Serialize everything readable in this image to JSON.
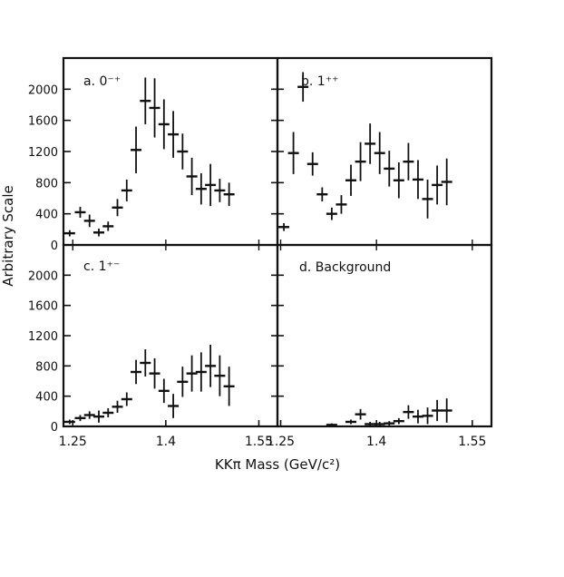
{
  "chart_data": {
    "type": "scatter",
    "style": "error-bar points, black on white, 2x2 panel grid with shared axes",
    "ylabel": "Arbitrary Scale",
    "xlabel": "KKπ Mass (GeV/c²)",
    "ylim": [
      0,
      2400
    ],
    "y_ticks": [
      "0",
      "400",
      "800",
      "1200",
      "1600",
      "2000"
    ],
    "x_ticks": [
      "1.25",
      "1.4",
      "1.55"
    ],
    "panels": [
      {
        "label": "a. 0⁻⁺",
        "xlim": [
          1.235,
          1.58
        ],
        "points": [
          {
            "x": 1.245,
            "y": 150,
            "err": 40
          },
          {
            "x": 1.262,
            "y": 420,
            "err": 70
          },
          {
            "x": 1.277,
            "y": 310,
            "err": 80
          },
          {
            "x": 1.292,
            "y": 160,
            "err": 50
          },
          {
            "x": 1.307,
            "y": 240,
            "err": 60
          },
          {
            "x": 1.322,
            "y": 480,
            "err": 110
          },
          {
            "x": 1.337,
            "y": 700,
            "err": 140
          },
          {
            "x": 1.352,
            "y": 1220,
            "err": 300
          },
          {
            "x": 1.367,
            "y": 1850,
            "err": 300
          },
          {
            "x": 1.382,
            "y": 1760,
            "err": 380
          },
          {
            "x": 1.397,
            "y": 1550,
            "err": 320
          },
          {
            "x": 1.412,
            "y": 1420,
            "err": 300
          },
          {
            "x": 1.427,
            "y": 1200,
            "err": 230
          },
          {
            "x": 1.442,
            "y": 880,
            "err": 240
          },
          {
            "x": 1.457,
            "y": 720,
            "err": 200
          },
          {
            "x": 1.472,
            "y": 770,
            "err": 270
          },
          {
            "x": 1.487,
            "y": 700,
            "err": 150
          },
          {
            "x": 1.502,
            "y": 650,
            "err": 150
          }
        ]
      },
      {
        "label": "b. 1⁺⁺",
        "xlim": [
          1.245,
          1.58
        ],
        "points": [
          {
            "x": 1.255,
            "y": 230,
            "err": 50
          },
          {
            "x": 1.27,
            "y": 1180,
            "err": 270
          },
          {
            "x": 1.285,
            "y": 2030,
            "err": 190
          },
          {
            "x": 1.3,
            "y": 1040,
            "err": 150
          },
          {
            "x": 1.315,
            "y": 650,
            "err": 90
          },
          {
            "x": 1.33,
            "y": 400,
            "err": 80
          },
          {
            "x": 1.345,
            "y": 520,
            "err": 120
          },
          {
            "x": 1.36,
            "y": 830,
            "err": 200
          },
          {
            "x": 1.375,
            "y": 1070,
            "err": 250
          },
          {
            "x": 1.39,
            "y": 1300,
            "err": 260
          },
          {
            "x": 1.405,
            "y": 1180,
            "err": 270
          },
          {
            "x": 1.42,
            "y": 980,
            "err": 230
          },
          {
            "x": 1.435,
            "y": 830,
            "err": 230
          },
          {
            "x": 1.45,
            "y": 1070,
            "err": 240
          },
          {
            "x": 1.465,
            "y": 840,
            "err": 250
          },
          {
            "x": 1.48,
            "y": 590,
            "err": 250
          },
          {
            "x": 1.495,
            "y": 770,
            "err": 250
          },
          {
            "x": 1.51,
            "y": 810,
            "err": 300
          }
        ]
      },
      {
        "label": "c. 1⁺⁻",
        "xlim": [
          1.235,
          1.58
        ],
        "points": [
          {
            "x": 1.245,
            "y": 60,
            "err": 30
          },
          {
            "x": 1.262,
            "y": 110,
            "err": 40
          },
          {
            "x": 1.277,
            "y": 150,
            "err": 50
          },
          {
            "x": 1.292,
            "y": 130,
            "err": 80
          },
          {
            "x": 1.307,
            "y": 180,
            "err": 60
          },
          {
            "x": 1.322,
            "y": 260,
            "err": 80
          },
          {
            "x": 1.337,
            "y": 360,
            "err": 90
          },
          {
            "x": 1.352,
            "y": 720,
            "err": 160
          },
          {
            "x": 1.367,
            "y": 840,
            "err": 180
          },
          {
            "x": 1.382,
            "y": 700,
            "err": 200
          },
          {
            "x": 1.397,
            "y": 470,
            "err": 160
          },
          {
            "x": 1.412,
            "y": 270,
            "err": 160
          },
          {
            "x": 1.427,
            "y": 590,
            "err": 200
          },
          {
            "x": 1.442,
            "y": 700,
            "err": 240
          },
          {
            "x": 1.457,
            "y": 720,
            "err": 260
          },
          {
            "x": 1.472,
            "y": 800,
            "err": 280
          },
          {
            "x": 1.487,
            "y": 670,
            "err": 270
          },
          {
            "x": 1.502,
            "y": 530,
            "err": 260
          }
        ]
      },
      {
        "label": "d. Background",
        "xlim": [
          1.245,
          1.58
        ],
        "points": [
          {
            "x": 1.33,
            "y": 20,
            "err": 20
          },
          {
            "x": 1.36,
            "y": 60,
            "err": 30
          },
          {
            "x": 1.375,
            "y": 160,
            "err": 70
          },
          {
            "x": 1.39,
            "y": 30,
            "err": 30
          },
          {
            "x": 1.405,
            "y": 30,
            "err": 30
          },
          {
            "x": 1.42,
            "y": 40,
            "err": 30
          },
          {
            "x": 1.435,
            "y": 70,
            "err": 40
          },
          {
            "x": 1.45,
            "y": 190,
            "err": 90
          },
          {
            "x": 1.465,
            "y": 130,
            "err": 90
          },
          {
            "x": 1.48,
            "y": 140,
            "err": 110
          },
          {
            "x": 1.495,
            "y": 210,
            "err": 140
          },
          {
            "x": 1.51,
            "y": 210,
            "err": 160
          }
        ]
      }
    ]
  }
}
